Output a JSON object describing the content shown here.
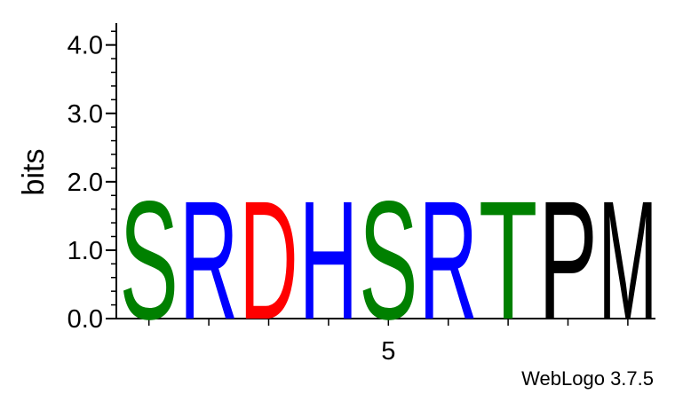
{
  "credit": "WebLogo 3.7.5",
  "chart_data": {
    "type": "sequence-logo",
    "title": "",
    "ylabel": "bits",
    "xlabel": "",
    "ylim": [
      0,
      4.32
    ],
    "y_ticks": [
      "0.0",
      "1.0",
      "2.0",
      "3.0",
      "4.0"
    ],
    "x_tick_labels": [
      {
        "position": 5,
        "label": "5"
      }
    ],
    "positions": [
      1,
      2,
      3,
      4,
      5,
      6,
      7,
      8,
      9
    ],
    "stacks": [
      [
        {
          "letter": "S",
          "bits": 1.78,
          "color": "#008000"
        }
      ],
      [
        {
          "letter": "R",
          "bits": 1.78,
          "color": "#0000ff"
        }
      ],
      [
        {
          "letter": "D",
          "bits": 1.78,
          "color": "#ff0000"
        }
      ],
      [
        {
          "letter": "H",
          "bits": 1.78,
          "color": "#0000ff"
        }
      ],
      [
        {
          "letter": "S",
          "bits": 1.78,
          "color": "#008000"
        }
      ],
      [
        {
          "letter": "R",
          "bits": 1.78,
          "color": "#0000ff"
        }
      ],
      [
        {
          "letter": "T",
          "bits": 1.78,
          "color": "#008000"
        }
      ],
      [
        {
          "letter": "P",
          "bits": 1.78,
          "color": "#000000"
        }
      ],
      [
        {
          "letter": "M",
          "bits": 1.78,
          "color": "#000000"
        }
      ]
    ]
  }
}
